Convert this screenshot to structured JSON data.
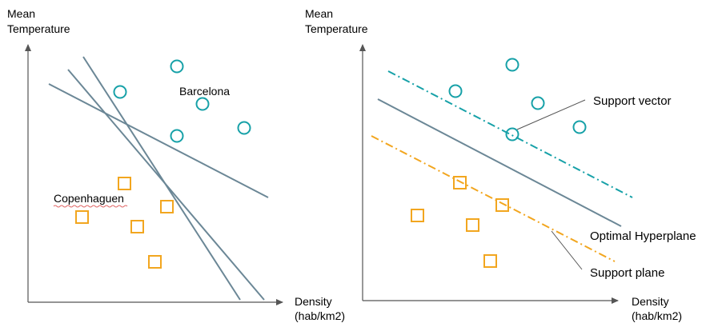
{
  "colors": {
    "axis": "#555555",
    "hyperplane": "#6b8796",
    "circle": "#17a1a8",
    "square": "#f2a61f",
    "support_plane_top": "#17a1a8",
    "support_plane_bottom": "#f2a61f",
    "pointer": "#555555",
    "spellcheck": "#e06666"
  },
  "left_panel": {
    "y_axis_label_line1": "Mean",
    "y_axis_label_line2": "Temperature",
    "x_axis_label_line1": "Density",
    "x_axis_label_line2": "(hab/km2)",
    "circle_cluster_label": "Barcelona",
    "square_cluster_label": "Copenhaguen"
  },
  "right_panel": {
    "y_axis_label_line1": "Mean",
    "y_axis_label_line2": "Temperature",
    "x_axis_label_line1": "Density",
    "x_axis_label_line2": "(hab/km2)",
    "support_vector_label": "Support vector",
    "optimal_hyperplane_label": "Optimal Hyperplane",
    "support_plane_label": "Support plane"
  }
}
